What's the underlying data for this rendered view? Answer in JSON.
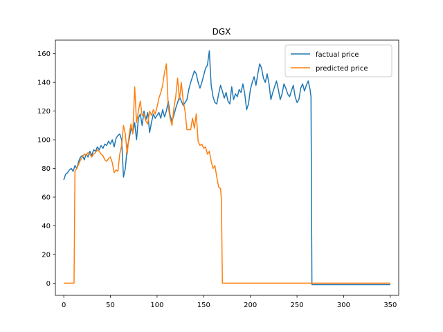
{
  "chart_data": {
    "type": "line",
    "title": "DGX",
    "xlabel": "",
    "ylabel": "",
    "xlim": [
      -9,
      359
    ],
    "ylim": [
      -8.5,
      169.5
    ],
    "xticks": [
      0,
      50,
      100,
      150,
      200,
      250,
      300,
      350
    ],
    "yticks": [
      0,
      20,
      40,
      60,
      80,
      100,
      120,
      140,
      160
    ],
    "grid": false,
    "legend_position": "top-right",
    "series": [
      {
        "name": "factual price",
        "color": "#1f77b4",
        "points": [
          [
            0,
            72
          ],
          [
            2,
            76
          ],
          [
            4,
            77
          ],
          [
            6,
            79
          ],
          [
            8,
            80
          ],
          [
            10,
            78
          ],
          [
            12,
            82
          ],
          [
            14,
            80
          ],
          [
            16,
            85
          ],
          [
            18,
            88
          ],
          [
            20,
            89
          ],
          [
            22,
            86
          ],
          [
            24,
            90
          ],
          [
            26,
            88
          ],
          [
            28,
            92
          ],
          [
            30,
            89
          ],
          [
            32,
            93
          ],
          [
            34,
            92
          ],
          [
            36,
            95
          ],
          [
            38,
            93
          ],
          [
            40,
            96
          ],
          [
            42,
            94
          ],
          [
            44,
            97
          ],
          [
            46,
            96
          ],
          [
            48,
            99
          ],
          [
            50,
            97
          ],
          [
            52,
            100
          ],
          [
            54,
            95
          ],
          [
            56,
            101
          ],
          [
            58,
            103
          ],
          [
            60,
            104
          ],
          [
            62,
            100
          ],
          [
            64,
            74
          ],
          [
            66,
            80
          ],
          [
            68,
            95
          ],
          [
            70,
            100
          ],
          [
            72,
            108
          ],
          [
            74,
            105
          ],
          [
            76,
            112
          ],
          [
            78,
            100
          ],
          [
            80,
            115
          ],
          [
            82,
            118
          ],
          [
            84,
            110
          ],
          [
            86,
            120
          ],
          [
            88,
            114
          ],
          [
            90,
            119
          ],
          [
            92,
            105
          ],
          [
            94,
            112
          ],
          [
            96,
            118
          ],
          [
            98,
            115
          ],
          [
            100,
            117
          ],
          [
            102,
            119
          ],
          [
            104,
            115
          ],
          [
            106,
            121
          ],
          [
            108,
            116
          ],
          [
            110,
            120
          ],
          [
            112,
            127
          ],
          [
            114,
            117
          ],
          [
            116,
            113
          ],
          [
            118,
            117
          ],
          [
            120,
            122
          ],
          [
            122,
            126
          ],
          [
            124,
            130
          ],
          [
            126,
            127
          ],
          [
            128,
            124
          ],
          [
            130,
            126
          ],
          [
            132,
            128
          ],
          [
            134,
            135
          ],
          [
            136,
            140
          ],
          [
            138,
            144
          ],
          [
            140,
            148
          ],
          [
            142,
            146
          ],
          [
            144,
            140
          ],
          [
            146,
            136
          ],
          [
            148,
            140
          ],
          [
            150,
            145
          ],
          [
            152,
            150
          ],
          [
            154,
            152
          ],
          [
            156,
            162
          ],
          [
            158,
            138
          ],
          [
            160,
            130
          ],
          [
            162,
            126
          ],
          [
            164,
            125
          ],
          [
            166,
            132
          ],
          [
            168,
            138
          ],
          [
            170,
            134
          ],
          [
            172,
            129
          ],
          [
            174,
            133
          ],
          [
            176,
            127
          ],
          [
            178,
            125
          ],
          [
            180,
            137
          ],
          [
            182,
            128
          ],
          [
            184,
            132
          ],
          [
            186,
            130
          ],
          [
            188,
            135
          ],
          [
            190,
            133
          ],
          [
            192,
            139
          ],
          [
            194,
            132
          ],
          [
            196,
            121
          ],
          [
            198,
            125
          ],
          [
            200,
            135
          ],
          [
            202,
            140
          ],
          [
            204,
            144
          ],
          [
            206,
            138
          ],
          [
            208,
            146
          ],
          [
            210,
            153
          ],
          [
            212,
            150
          ],
          [
            214,
            143
          ],
          [
            216,
            140
          ],
          [
            218,
            146
          ],
          [
            220,
            139
          ],
          [
            222,
            128
          ],
          [
            224,
            133
          ],
          [
            226,
            137
          ],
          [
            228,
            141
          ],
          [
            230,
            135
          ],
          [
            232,
            128
          ],
          [
            234,
            132
          ],
          [
            236,
            139
          ],
          [
            238,
            136
          ],
          [
            240,
            132
          ],
          [
            242,
            130
          ],
          [
            244,
            134
          ],
          [
            246,
            138
          ],
          [
            248,
            130
          ],
          [
            250,
            126
          ],
          [
            252,
            128
          ],
          [
            254,
            136
          ],
          [
            256,
            139
          ],
          [
            258,
            134
          ],
          [
            260,
            138
          ],
          [
            262,
            141
          ],
          [
            264,
            135
          ],
          [
            265,
            130
          ],
          [
            266,
            -1
          ],
          [
            300,
            -1
          ],
          [
            350,
            -1
          ]
        ]
      },
      {
        "name": "predicted price",
        "color": "#ff7f0e",
        "points": [
          [
            0,
            0
          ],
          [
            10,
            0
          ],
          [
            11,
            0
          ],
          [
            12,
            78
          ],
          [
            14,
            80
          ],
          [
            16,
            83
          ],
          [
            18,
            86
          ],
          [
            20,
            88
          ],
          [
            22,
            90
          ],
          [
            24,
            89
          ],
          [
            26,
            91
          ],
          [
            28,
            90
          ],
          [
            30,
            88
          ],
          [
            32,
            90
          ],
          [
            34,
            91
          ],
          [
            36,
            93
          ],
          [
            38,
            92
          ],
          [
            40,
            90
          ],
          [
            42,
            89
          ],
          [
            44,
            86
          ],
          [
            46,
            85
          ],
          [
            48,
            87
          ],
          [
            50,
            88
          ],
          [
            52,
            84
          ],
          [
            54,
            77
          ],
          [
            56,
            79
          ],
          [
            58,
            78
          ],
          [
            60,
            90
          ],
          [
            62,
            96
          ],
          [
            64,
            110
          ],
          [
            66,
            104
          ],
          [
            68,
            90
          ],
          [
            70,
            103
          ],
          [
            72,
            111
          ],
          [
            74,
            104
          ],
          [
            76,
            137
          ],
          [
            78,
            112
          ],
          [
            80,
            120
          ],
          [
            82,
            127
          ],
          [
            84,
            117
          ],
          [
            86,
            118
          ],
          [
            88,
            113
          ],
          [
            90,
            111
          ],
          [
            92,
            120
          ],
          [
            94,
            117
          ],
          [
            96,
            121
          ],
          [
            98,
            118
          ],
          [
            100,
            123
          ],
          [
            102,
            129
          ],
          [
            104,
            133
          ],
          [
            106,
            138
          ],
          [
            108,
            147
          ],
          [
            110,
            153
          ],
          [
            112,
            123
          ],
          [
            114,
            115
          ],
          [
            116,
            110
          ],
          [
            118,
            122
          ],
          [
            120,
            130
          ],
          [
            122,
            143
          ],
          [
            124,
            128
          ],
          [
            126,
            140
          ],
          [
            128,
            127
          ],
          [
            130,
            120
          ],
          [
            132,
            107
          ],
          [
            134,
            107
          ],
          [
            136,
            107
          ],
          [
            138,
            115
          ],
          [
            140,
            108
          ],
          [
            142,
            118
          ],
          [
            144,
            99
          ],
          [
            146,
            96
          ],
          [
            148,
            97
          ],
          [
            150,
            94
          ],
          [
            152,
            95
          ],
          [
            154,
            90
          ],
          [
            156,
            92
          ],
          [
            158,
            85
          ],
          [
            160,
            80
          ],
          [
            162,
            82
          ],
          [
            164,
            74
          ],
          [
            166,
            67
          ],
          [
            168,
            66
          ],
          [
            169,
            58
          ],
          [
            170,
            0
          ],
          [
            200,
            0
          ],
          [
            250,
            0
          ],
          [
            300,
            0
          ],
          [
            350,
            0
          ]
        ]
      }
    ]
  }
}
